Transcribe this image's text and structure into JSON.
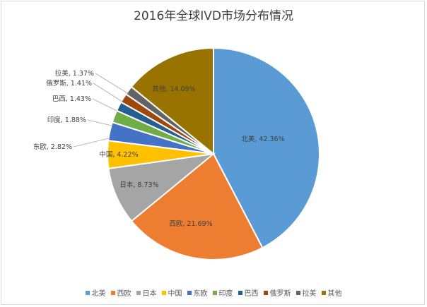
{
  "chart_data": {
    "type": "pie",
    "title": "2016年全球IVD市场分布情况",
    "categories": [
      "北美",
      "西欧",
      "日本",
      "中国",
      "东欧",
      "印度",
      "巴西",
      "俄罗斯",
      "拉美",
      "其他"
    ],
    "values": [
      42.36,
      21.69,
      8.73,
      4.22,
      2.82,
      1.88,
      1.43,
      1.41,
      1.37,
      14.09
    ],
    "labels": [
      "北美, 42.36%",
      "西欧, 21.69%",
      "日本, 8.73%",
      "中国, 4.22%",
      "东欧, 2.82%",
      "印度, 1.88%",
      "巴西, 1.43%",
      "俄罗斯, 1.41%",
      "拉美, 1.37%",
      "其他, 14.09%"
    ],
    "colors": [
      "#5b9bd5",
      "#ed7d31",
      "#a5a5a5",
      "#ffc000",
      "#4472c4",
      "#70ad47",
      "#255e91",
      "#9e480e",
      "#636363",
      "#997300"
    ],
    "legend_position": "bottom",
    "start_angle": "12 o'clock, clockwise"
  }
}
